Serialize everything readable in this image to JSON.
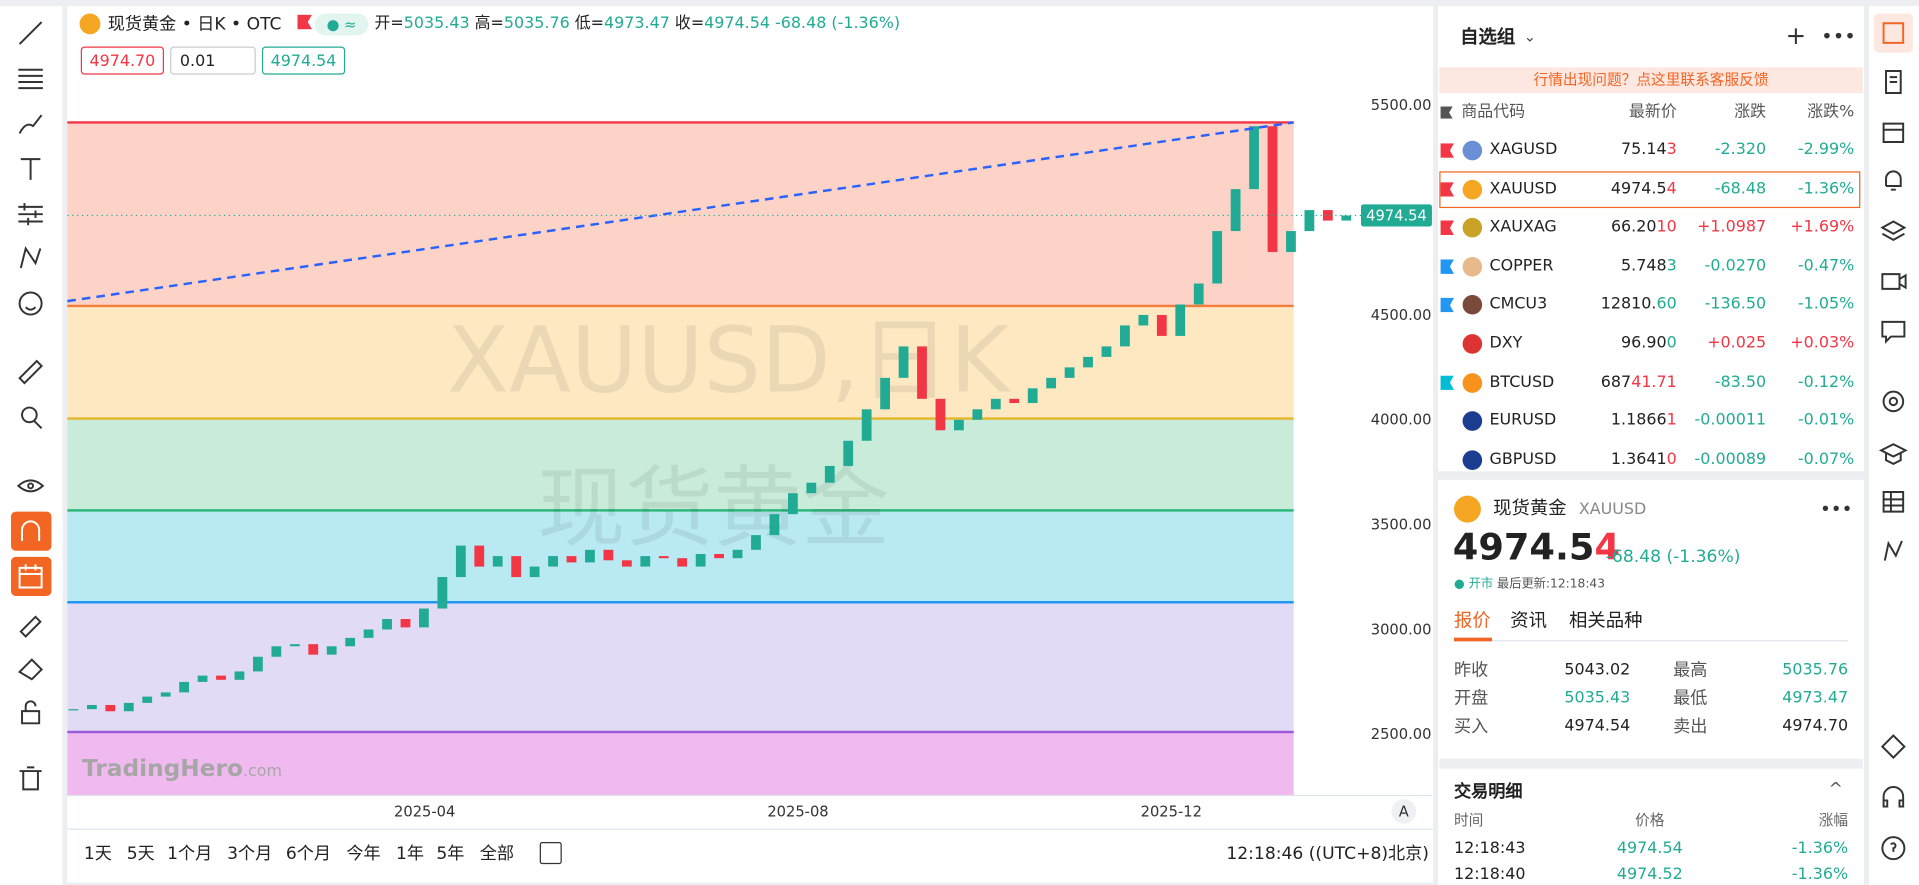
{
  "header": {
    "title": "现货黄金 • 日K • OTC",
    "open_label": "开=",
    "open": "5035.43",
    "high_label": "高=",
    "high": "5035.76",
    "low_label": "低=",
    "low": "4973.47",
    "close_label": "收=",
    "close": "4974.54",
    "change": "-68.48 (-1.36%)"
  },
  "order": {
    "sell": "4974.70",
    "qty": "0.01",
    "buy": "4974.54"
  },
  "chart": {
    "type": "candlestick",
    "watermark_symbol": "XAUUSD,日K",
    "watermark_name": "现货黄金",
    "brand": "TradingHero",
    "brand_suffix": ".com",
    "yticks": [
      {
        "value": 5500,
        "label": "5500.00"
      },
      {
        "value": 4500,
        "label": "4500.00"
      },
      {
        "value": 4000,
        "label": "4000.00"
      },
      {
        "value": 3500,
        "label": "3500.00"
      },
      {
        "value": 3000,
        "label": "3000.00"
      },
      {
        "value": 2500,
        "label": "2500.00"
      }
    ],
    "xticks": [
      "2025-04",
      "2025-08",
      "2025-12"
    ],
    "scale_mode": "A",
    "up_color": "#22ab94",
    "down_color": "#f23645",
    "closes": [
      2620,
      2640,
      2610,
      2650,
      2680,
      2700,
      2750,
      2780,
      2760,
      2800,
      2870,
      2920,
      2930,
      2880,
      2920,
      2960,
      3000,
      3050,
      3010,
      3100,
      3250,
      3400,
      3300,
      3350,
      3250,
      3300,
      3350,
      3320,
      3380,
      3330,
      3300,
      3350,
      3340,
      3300,
      3360,
      3340,
      3380,
      3450,
      3550,
      3650,
      3700,
      3780,
      3900,
      4050,
      4200,
      4350,
      4100,
      3950,
      4000,
      4050,
      4100,
      4080,
      4150,
      4200,
      4250,
      4300,
      4350,
      4450,
      4500,
      4400,
      4550,
      4650,
      4900,
      5100,
      5400,
      4800,
      4900,
      5000,
      4950,
      4974.54
    ],
    "fib_levels": [
      5418,
      4543,
      4006,
      3568,
      3130,
      2511
    ],
    "fib_line_colors": [
      "#f23645",
      "#f57c3a",
      "#e6b62a",
      "#2eb87a",
      "#2196f3",
      "#9c5ad6"
    ],
    "fib_fill_colors": [
      "#fdd3c8",
      "#fde8c2",
      "#c9ecda",
      "#b9e9f3",
      "#e2dbf6",
      "#f0baf1"
    ],
    "trendline": [
      4566,
      5418
    ],
    "current_price": 4974.54,
    "current_price_label": "4974.54"
  },
  "toolbar": {
    "timeframes": [
      "1天",
      "5天",
      "1个月",
      "3个月",
      "6个月",
      "今年",
      "1年",
      "5年",
      "全部"
    ],
    "clock": "12:18:46 ((UTC+8)北京)"
  },
  "watchlist": {
    "title": "自选组",
    "notice": "行情出现问题？点这里联系客服反馈",
    "columns": [
      "商品代码",
      "最新价",
      "涨跌",
      "涨跌%"
    ],
    "rows": [
      {
        "symbol": "XAGUSD",
        "price": "75.14",
        "price_tail": "3",
        "tail_color": "#f23645",
        "change": "-2.320",
        "pct": "-2.99%"
      },
      {
        "symbol": "XAUUSD",
        "price": "4974.5",
        "price_tail": "4",
        "tail_color": "#f23645",
        "change": "-68.48",
        "pct": "-1.36%"
      },
      {
        "symbol": "XAUXAG",
        "price": "66.20",
        "price_tail": "10",
        "tail_color": "#f23645",
        "change": "+1.0987",
        "pct": "+1.69%"
      },
      {
        "symbol": "COPPER",
        "price": "5.748",
        "price_tail": "3",
        "tail_color": "#22ab94",
        "change": "-0.0270",
        "pct": "-0.47%"
      },
      {
        "symbol": "CMCU3",
        "price": "12810.",
        "price_tail": "60",
        "tail_color": "#22ab94",
        "change": "-136.50",
        "pct": "-1.05%"
      },
      {
        "symbol": "DXY",
        "price": "96.90",
        "price_tail": "0",
        "tail_color": "#22ab94",
        "change": "+0.025",
        "pct": "+0.03%"
      },
      {
        "symbol": "BTCUSD",
        "price": "687",
        "price_tail": "41.71",
        "tail_color": "#f23645",
        "change": "-83.50",
        "pct": "-0.12%"
      },
      {
        "symbol": "EURUSD",
        "price": "1.1866",
        "price_tail": "1",
        "tail_color": "#f23645",
        "change": "-0.00011",
        "pct": "-0.01%"
      },
      {
        "symbol": "GBPUSD",
        "price": "1.3641",
        "price_tail": "0",
        "tail_color": "#f23645",
        "change": "-0.00089",
        "pct": "-0.07%"
      }
    ]
  },
  "detail": {
    "name": "现货黄金",
    "symbol": "XAUUSD",
    "price": "4974.5",
    "price_tail": "4",
    "change": "-68.48 (-1.36%)",
    "status": "开市",
    "updated": "最后更新:12:18:43",
    "tabs": [
      "报价",
      "资讯",
      "相关品种"
    ],
    "quote": [
      [
        {
          "label": "昨收",
          "value": "5043.02",
          "color": "#222"
        },
        {
          "label": "最高",
          "value": "5035.76",
          "color": "#22ab94"
        }
      ],
      [
        {
          "label": "开盘",
          "value": "5035.43",
          "color": "#22ab94"
        },
        {
          "label": "最低",
          "value": "4973.47",
          "color": "#22ab94"
        }
      ],
      [
        {
          "label": "买入",
          "value": "4974.54",
          "color": "#222"
        },
        {
          "label": "卖出",
          "value": "4974.70",
          "color": "#222"
        }
      ]
    ],
    "trades_title": "交易明细",
    "trade_columns": [
      "时间",
      "价格",
      "涨幅"
    ],
    "trades": [
      [
        "12:18:43",
        "4974.54",
        "-1.36%"
      ],
      [
        "12:18:40",
        "4974.52",
        "-1.36%"
      ]
    ]
  }
}
